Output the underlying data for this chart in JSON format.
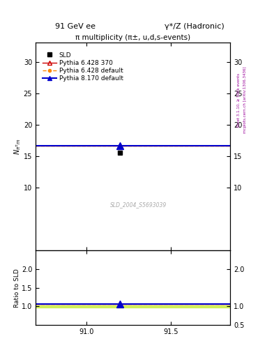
{
  "title_left": "91 GeV ee",
  "title_right": "γ*/Z (Hadronic)",
  "plot_title": "π multiplicity (π±, u,d,s-events)",
  "watermark": "SLD_2004_S5693039",
  "right_label_top": "Rivet 3.1.10, ≥ 500k events",
  "right_label_bot": "mcplots.cern.ch [arXiv:1306.3436]",
  "xlim": [
    90.7,
    91.85
  ],
  "ylim_main": [
    0,
    33
  ],
  "ylim_ratio": [
    0.5,
    2.5
  ],
  "yticks_main": [
    10,
    15,
    20,
    25,
    30
  ],
  "yticks_ratio_left": [
    1.0,
    1.5,
    2.0
  ],
  "yticks_ratio_right": [
    0.5,
    1.0,
    2.0
  ],
  "xticks": [
    91.0,
    91.5
  ],
  "sld_x": 91.2,
  "sld_y": 15.5,
  "line_y": 16.68,
  "line_x_start": 90.7,
  "line_x_end": 91.85,
  "pythia_point_x": 91.2,
  "pythia_640_370_color": "#cc0000",
  "pythia_640_def_color": "#ff8800",
  "pythia_8_def_color": "#0000cc",
  "sld_color": "#000000",
  "ratio_line_y": 1.07,
  "ratio_band_low": 0.97,
  "ratio_band_high": 1.03,
  "legend_entries": [
    "SLD",
    "Pythia 6.428 370",
    "Pythia 6.428 default",
    "Pythia 8.170 default"
  ]
}
